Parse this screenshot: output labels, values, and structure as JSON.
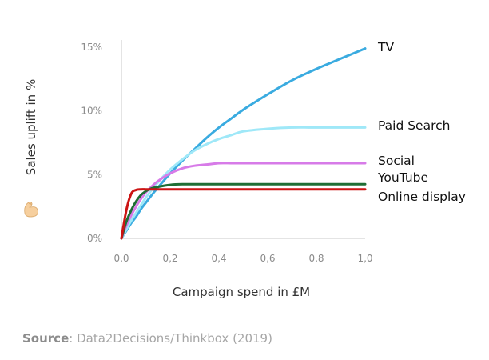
{
  "chart_data": {
    "type": "line",
    "xlabel": "Campaign spend in £M",
    "ylabel": "Sales uplift in %",
    "xlim": [
      0,
      1
    ],
    "ylim": [
      0,
      15
    ],
    "x_ticks": [
      0.0,
      0.2,
      0.4,
      0.6,
      0.8,
      1.0
    ],
    "x_tick_labels": [
      "0,0",
      "0,2",
      "0,4",
      "0,6",
      "0,8",
      "1,0"
    ],
    "y_ticks": [
      0,
      5,
      10,
      15
    ],
    "y_tick_labels": [
      "0%",
      "5%",
      "10%",
      "15%"
    ],
    "grid": false,
    "legend": "inline labels at right end of each line",
    "x": [
      0.0,
      0.02,
      0.04,
      0.06,
      0.08,
      0.1,
      0.12,
      0.15,
      0.2,
      0.25,
      0.3,
      0.35,
      0.4,
      0.45,
      0.5,
      0.6,
      0.7,
      0.8,
      0.9,
      1.0
    ],
    "series": [
      {
        "name": "TV",
        "color": "#3aabe0",
        "values": [
          0.0,
          0.6,
          1.2,
          1.7,
          2.3,
          2.8,
          3.3,
          4.0,
          5.1,
          6.1,
          7.0,
          7.9,
          8.7,
          9.4,
          10.1,
          11.3,
          12.4,
          13.3,
          14.1,
          14.9
        ]
      },
      {
        "name": "Paid Search",
        "color": "#9fe8f8",
        "values": [
          0.0,
          0.7,
          1.4,
          2.0,
          2.6,
          3.2,
          3.7,
          4.4,
          5.4,
          6.2,
          6.9,
          7.4,
          7.8,
          8.1,
          8.4,
          8.6,
          8.7,
          8.7,
          8.7,
          8.7
        ]
      },
      {
        "name": "Social",
        "color": "#d77be8",
        "values": [
          0.0,
          1.0,
          1.8,
          2.5,
          3.1,
          3.6,
          4.0,
          4.5,
          5.1,
          5.5,
          5.7,
          5.8,
          5.9,
          5.9,
          5.9,
          5.9,
          5.9,
          5.9,
          5.9,
          5.9
        ]
      },
      {
        "name": "YouTube",
        "color": "#1e6e35",
        "values": [
          0.0,
          1.3,
          2.2,
          2.9,
          3.4,
          3.7,
          3.9,
          4.05,
          4.2,
          4.25,
          4.25,
          4.25,
          4.25,
          4.25,
          4.25,
          4.25,
          4.25,
          4.25,
          4.25,
          4.25
        ]
      },
      {
        "name": "Online display",
        "color": "#cc1414",
        "values": [
          0.0,
          2.2,
          3.5,
          3.8,
          3.85,
          3.85,
          3.85,
          3.85,
          3.85,
          3.85,
          3.85,
          3.85,
          3.85,
          3.85,
          3.85,
          3.85,
          3.85,
          3.85,
          3.85,
          3.85
        ]
      }
    ]
  },
  "source": {
    "label": "Source",
    "text": ": Data2Decisions/Thinkbox (2019)"
  }
}
